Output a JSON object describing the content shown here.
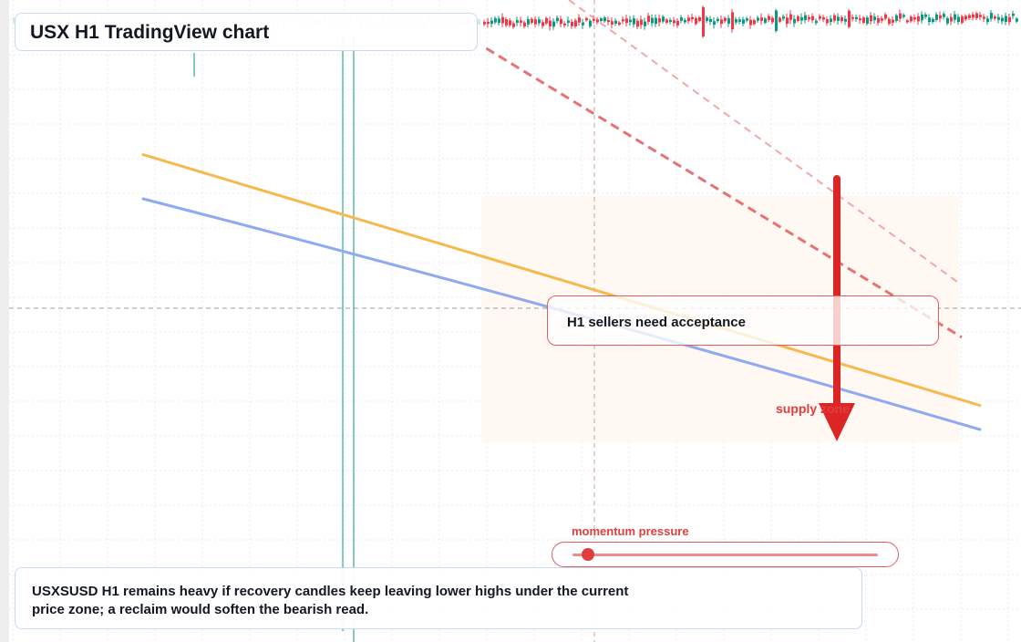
{
  "title": "USX H1 TradingView chart",
  "callout": "H1 sellers need acceptance",
  "zone_label": "supply zone",
  "momentum": {
    "label": "momentum pressure",
    "level": 0.05
  },
  "note": "USXSUSD H1 remains heavy if recovery candles keep leaving lower highs under the current price zone; a reclaim would soften the bearish read.",
  "colors": {
    "bull": "#089981",
    "bear": "#f23645",
    "ma_fast": "#f6b94e",
    "ma_slow": "#8faaf0",
    "accent_red": "#e03e3e",
    "grid": "#e6e9ef"
  },
  "chart_data": {
    "type": "candlestick",
    "symbol": "USXSUSD",
    "timeframe": "H1",
    "bias": "bearish",
    "series": [
      {
        "kind": "moving-average",
        "points": [
          [
            0,
            1.37
          ],
          [
            1,
            0.12
          ]
        ]
      },
      {
        "kind": "moving-average",
        "points": [
          [
            0,
            1.15
          ],
          [
            1,
            0.0
          ]
        ]
      }
    ],
    "trendlines": [
      {
        "style": "dashed",
        "points": [
          [
            0.41,
            1.9
          ],
          [
            1,
            0.46
          ]
        ]
      },
      {
        "style": "dashed-light",
        "points": [
          [
            0.41,
            2.44
          ],
          [
            1,
            0.72
          ]
        ]
      }
    ]
  }
}
